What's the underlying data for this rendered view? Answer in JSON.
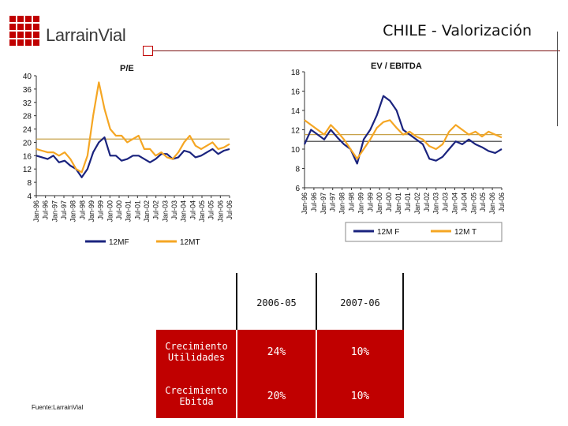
{
  "logo": {
    "name": "LarrainVial"
  },
  "slide_title": "CHILE - Valorización",
  "chart_data": [
    {
      "type": "line",
      "title": "P/E",
      "ylim": [
        4,
        40
      ],
      "yticks": [
        4,
        8,
        12,
        16,
        20,
        24,
        28,
        32,
        36,
        40
      ],
      "xticks": [
        "Jan-96",
        "Jul-96",
        "Jan-97",
        "Jul-97",
        "Jan-98",
        "Jul-98",
        "Jan-99",
        "Jul-99",
        "Jan-00",
        "Jul-00",
        "Jan-01",
        "Jul-01",
        "Jan-02",
        "Jul-02",
        "Jan-03",
        "Jul-03",
        "Jan-04",
        "Jul-04",
        "Jan-05",
        "Jul-05",
        "Jan-06",
        "Jul-06"
      ],
      "reference_line": 21,
      "series": [
        {
          "name": "12MF",
          "color": "#1a237e",
          "values": [
            16,
            15.5,
            15,
            16,
            14,
            14.5,
            13,
            12,
            9.5,
            12,
            17,
            20,
            21.5,
            16,
            16,
            14.5,
            15,
            16,
            16,
            15,
            14,
            15,
            16.5,
            16.5,
            15,
            15.5,
            17.5,
            17,
            15.5,
            16,
            17,
            18,
            16.5,
            17.5,
            18
          ]
        },
        {
          "name": "12MT",
          "color": "#f5a623",
          "values": [
            18,
            17.5,
            17,
            17,
            16,
            17,
            15,
            12,
            11,
            16,
            28,
            38,
            30,
            24,
            22,
            22,
            20,
            21,
            22,
            18,
            18,
            16,
            17,
            15.5,
            15,
            17,
            20,
            22,
            19,
            18,
            19,
            20,
            18,
            18.5,
            19.5
          ]
        }
      ]
    },
    {
      "type": "line",
      "title": "EV / EBITDA",
      "ylim": [
        6,
        18
      ],
      "yticks": [
        6,
        8,
        10,
        12,
        14,
        16,
        18
      ],
      "xticks": [
        "Jan-96",
        "Jul-96",
        "Jan-97",
        "Jul-97",
        "Jan-98",
        "Jul-98",
        "Jan-99",
        "Jul-99",
        "Jan-00",
        "Jul-00",
        "Jan-01",
        "Jul-01",
        "Jan-02",
        "Jul-02",
        "Jan-03",
        "Jul-03",
        "Jan-04",
        "Jul-04",
        "Jan-05",
        "Jul-05",
        "Jan-06",
        "Jul-06"
      ],
      "reference_lines": [
        11.5,
        10.8
      ],
      "series": [
        {
          "name": "12M F",
          "color": "#1a237e",
          "values": [
            10.5,
            12,
            11.5,
            11,
            12,
            11.2,
            10.5,
            10,
            8.5,
            11,
            12,
            13.5,
            15.5,
            15,
            14,
            12,
            11.5,
            11,
            10.5,
            9,
            8.8,
            9.2,
            10,
            10.8,
            10.5,
            11,
            10.5,
            10.2,
            9.8,
            9.6,
            10
          ]
        },
        {
          "name": "12M T",
          "color": "#f5a623",
          "values": [
            13,
            12.5,
            12,
            11.5,
            12.5,
            11.8,
            11,
            10,
            9,
            10,
            11,
            12.2,
            12.8,
            13,
            12.2,
            11.5,
            11.8,
            11.3,
            11,
            10.3,
            10,
            10.5,
            11.8,
            12.5,
            12,
            11.5,
            11.8,
            11.3,
            11.8,
            11.5,
            11.2
          ]
        }
      ]
    }
  ],
  "table": {
    "columns": [
      "2006-05",
      "2007-06"
    ],
    "rows": [
      {
        "label": "Crecimiento Utilidades",
        "values": [
          "24%",
          "10%"
        ]
      },
      {
        "label": "Crecimiento Ebitda",
        "values": [
          "20%",
          "10%"
        ]
      }
    ]
  },
  "source": "Fuente:LarrainVial",
  "colors": {
    "brand_red": "#c00000",
    "navy": "#1a237e",
    "orange": "#f5a623"
  }
}
